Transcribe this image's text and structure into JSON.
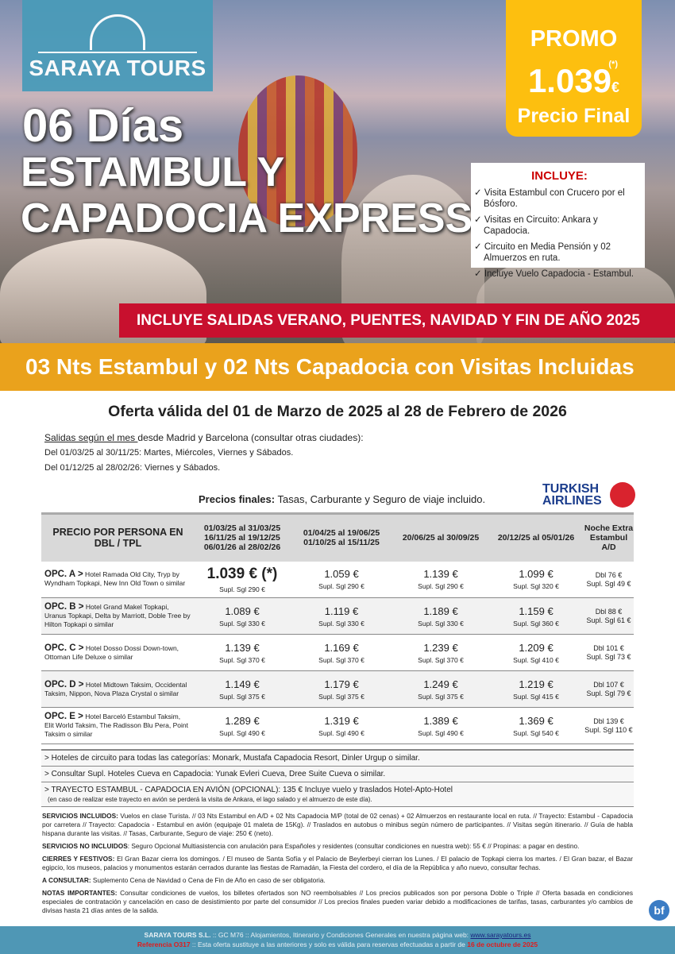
{
  "brand": {
    "name": "SARAYA TOURS"
  },
  "hero": {
    "days": "06 Días",
    "title_line1": "ESTAMBUL Y",
    "title_line2": "CAPADOCIA EXPRESS"
  },
  "promo": {
    "label": "PROMO",
    "asterisk": "(*)",
    "price": "1.039",
    "currency": "€",
    "subtitle": "Precio Final"
  },
  "includes": {
    "title": "INCLUYE:",
    "items": [
      "✓ Visita Estambul con Crucero por el Bósforo.",
      "✓ Visitas en Circuito: Ankara y Capadocia.",
      "✓ Circuito en Media Pensión y 02 Almuerzos en ruta.",
      "✓ Incluye Vuelo Capadocia - Estambul."
    ]
  },
  "banner": "INCLUYE SALIDAS VERANO, PUENTES, NAVIDAD Y FIN DE AÑO 2025",
  "subtitle": "03 Nts Estambul y 02 Nts Capadocia con Visitas Incluidas",
  "offer": "Oferta válida del 01 de Marzo de 2025 al 28 de Febrero de 2026",
  "departures": {
    "lead_underlined": "Salidas según el mes ",
    "lead_rest": "desde Madrid y Barcelona (consultar otras ciudades):",
    "line1": "Del 01/03/25 al 30/11/25: Martes, Miércoles, Viernes y Sábados.",
    "line2": "Del 01/12/25 al 28/02/26: Viernes y Sábados."
  },
  "prices_note": {
    "bold": "Precios finales:",
    "rest": " Tasas, Carburante y Seguro de viaje incluido."
  },
  "airline": {
    "line1": "TURKISH",
    "line2": "AIRLINES"
  },
  "table": {
    "headers": [
      "PRECIO POR PERSONA EN DBL / TPL",
      "01/03/25 al 31/03/25 16/11/25 al 19/12/25 06/01/26 al 28/02/26",
      "01/04/25 al 19/06/25 01/10/25 al 15/11/25",
      "20/06/25 al 30/09/25",
      "20/12/25 al 05/01/26",
      "Noche Extra Estambul A/D"
    ],
    "rows": [
      {
        "opt": "OPC. A >",
        "hotels": " Hotel Ramada Old City, Tryp by Wyndham Topkapi, New Inn Old Town o similar",
        "prices": [
          "1.039 € (*)",
          "1.059 €",
          "1.139 €",
          "1.099 €"
        ],
        "supl": [
          "Supl. Sgl 290 €",
          "Supl. Sgl 290 €",
          "Supl. Sgl 290 €",
          "Supl. Sgl 320 €"
        ],
        "extra": "Dbl 76 €",
        "extra_sgl": "Supl. Sgl 49 €"
      },
      {
        "opt": "OPC. B >",
        "hotels": " Hotel Grand Makel Topkapi, Uranus Topkapi, Delta by Marriott, Doble Tree by Hilton Topkapi o similar",
        "prices": [
          "1.089 €",
          "1.119 €",
          "1.189 €",
          "1.159 €"
        ],
        "supl": [
          "Supl. Sgl 330 €",
          "Supl. Sgl 330 €",
          "Supl. Sgl 330 €",
          "Supl. Sgl 360 €"
        ],
        "extra": "Dbl 88 €",
        "extra_sgl": "Supl. Sgl 61 €"
      },
      {
        "opt": "OPC. C >",
        "hotels": " Hotel Dosso Dossi Down-town, Ottoman Life Deluxe o similar",
        "prices": [
          "1.139 €",
          "1.169 €",
          "1.239 €",
          "1.209 €"
        ],
        "supl": [
          "Supl. Sgl 370 €",
          "Supl. Sgl 370 €",
          "Supl. Sgl 370 €",
          "Supl. Sgl 410 €"
        ],
        "extra": "Dbl 101 €",
        "extra_sgl": "Supl. Sgl 73 €"
      },
      {
        "opt": "OPC. D >",
        "hotels": " Hotel Midtown Taksim, Occidental Taksim, Nippon, Nova Plaza Crystal o similar",
        "prices": [
          "1.149 €",
          "1.179 €",
          "1.249 €",
          "1.219 €"
        ],
        "supl": [
          "Supl. Sgl 375 €",
          "Supl. Sgl 375 €",
          "Supl. Sgl 375 €",
          "Supl. Sgl 415 €"
        ],
        "extra": "Dbl 107 €",
        "extra_sgl": "Supl. Sgl 79 €"
      },
      {
        "opt": "OPC. E >",
        "hotels": " Hotel Barceló Estambul Taksim, Elit World Taksim, The Radisson Blu Pera, Point Taksim o similar",
        "prices": [
          "1.289 €",
          "1.319 €",
          "1.389 €",
          "1.369 €"
        ],
        "supl": [
          "Supl. Sgl 490 €",
          "Supl. Sgl 490 €",
          "Supl. Sgl 490 €",
          "Supl. Sgl 540 €"
        ],
        "extra": "Dbl 139 €",
        "extra_sgl": "Supl. Sgl 110 €"
      }
    ]
  },
  "notes": [
    "> Hoteles de circuito para todas las categorías: Monark, Mustafa Capadocia Resort, Dinler Urgup o similar.",
    "> Consultar Supl. Hoteles Cueva en Capadocia: Yunak Evleri Cueva, Dree Suite Cueva o similar.",
    "> TRAYECTO ESTAMBUL - CAPADOCIA EN AVIÓN (OPCIONAL): 135 € Incluye vuelo y traslados Hotel-Apto-Hotel"
  ],
  "notes_small": "(en caso de realizar este trayecto en avión se perderá la visita de Ankara, el lago salado y el almuerzo de este día).",
  "terms": [
    {
      "label": "SERVICIOS INCLUIDOS:",
      "text": " Vuelos en clase Turista. // 03 Nts Estambul en A/D + 02 Nts Capadocia M/P (total de 02 cenas) + 02 Almuerzos en restaurante local en ruta. // Trayecto: Estambul - Capadocia por carretera // Trayecto: Capadocia - Estambul en avión (equipaje 01 maleta de 15Kg). // Traslados en autobus o minibus según número de participantes. // Visitas según itinerario. // Guía de habla hispana durante las visitas. // Tasas, Carburante, Seguro de viaje: 250 € (neto)."
    },
    {
      "label": "SERVICIOS NO INCLUIDOS",
      "text": ": Seguro Opcional Multiasistencia con anulación para Españoles y residentes (consultar condiciones en nuestra web): 55 € // Propinas: a pagar en destino."
    },
    {
      "label": "CIERRES Y FESTIVOS:",
      "text": " El Gran Bazar cierra los domingos. / El museo de Santa Sofía y el Palacio de Beylerbeyi cierran los Lunes. / El palacio de Topkapi cierra los martes. / El Gran bazar, el Bazar egipcio, los museos, palacios y monumentos estarán cerrados durante las fiestas de Ramadán, la Fiesta del cordero, el día de la República y año nuevo, consultar fechas."
    },
    {
      "label": "A CONSULTAR:",
      "text": " Suplemento Cena de Navidad o Cena de Fin de Año en caso de ser obligatoria."
    },
    {
      "label": "NOTAS IMPORTANTES:",
      "text": " Consultar condiciones de vuelos, los billetes ofertados son NO reembolsables // Los precios publicados son por persona Doble o Triple // Oferta basada en condiciones especiales de contratación y cancelación en caso de desistimiento por parte del consumidor // Los precios finales pueden variar debido a modificaciones de tarifas, tasas, carburantes y/o cambios de divisas hasta 21 días antes de la salida."
    }
  ],
  "badge": "bf",
  "footer": {
    "company": "SARAYA TOURS S.L.",
    "mid": " :: GC M76 ::  Alojamientos, Itinerario y Condiciones Generales en nuestra página web:  ",
    "url": "www.sarayatours.es",
    "ref": "Referencia O317",
    "ref_text": " :: Esta oferta sustituye a las anteriores y solo es válida para reservas efectuadas a partir de ",
    "date": "16 de octubre de 2025"
  },
  "colors": {
    "logo": "#4a9bb9",
    "promo": "#fdbf0f",
    "banner": "#c8102e",
    "orange": "#eaa21c",
    "footer": "#4f97b5"
  }
}
